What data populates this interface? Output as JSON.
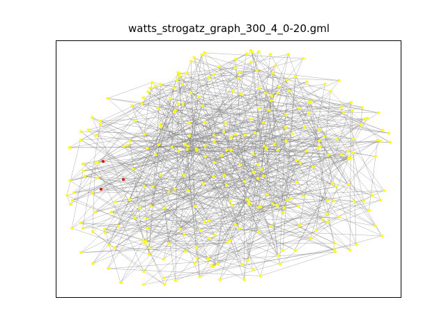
{
  "title": "watts_strogatz_graph_300_4_0-20.gml",
  "colors": {
    "node_default": "#ffff00",
    "node_highlight": "#ff0000",
    "edge": "#808080",
    "frame": "#000000",
    "background": "#ffffff"
  },
  "graph": {
    "type": "network",
    "node_count": 300,
    "neighbors_k": 4,
    "rewire_probability": 0.2,
    "highlighted_node_count": 3
  }
}
